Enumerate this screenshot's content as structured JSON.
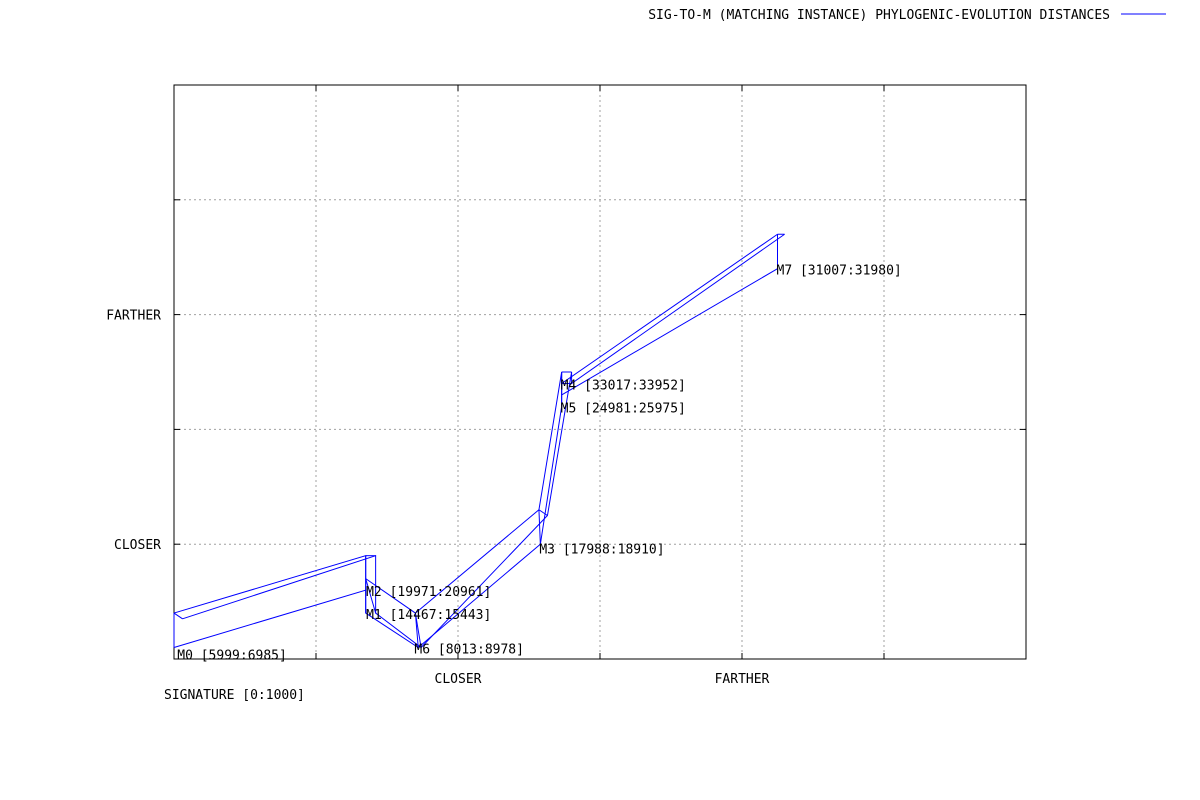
{
  "chart_data": {
    "type": "line",
    "legend": {
      "label": "SIG-TO-M (MATCHING INSTANCE) PHYLOGENIC-EVOLUTION DISTANCES",
      "placement": "top-right",
      "color": "#0000ff"
    },
    "xlim": [
      0,
      6
    ],
    "ylim": [
      0,
      5
    ],
    "x_ticks": [
      {
        "value": 1,
        "label": ""
      },
      {
        "value": 2,
        "label": "CLOSER"
      },
      {
        "value": 3,
        "label": ""
      },
      {
        "value": 4,
        "label": "FARTHER"
      },
      {
        "value": 5,
        "label": ""
      }
    ],
    "y_ticks": [
      {
        "value": 1,
        "label": "CLOSER"
      },
      {
        "value": 2,
        "label": ""
      },
      {
        "value": 3,
        "label": "FARTHER"
      },
      {
        "value": 4,
        "label": ""
      }
    ],
    "x_sublabel": "SIGNATURE [0:1000]",
    "grid": true,
    "series_color": "#0000ff",
    "points": [
      {
        "name": "M0",
        "label": "M0 [5999:6985]",
        "x": 0.03,
        "y": 0.05,
        "top": [
          0.0,
          0.4
        ],
        "bot": [
          0.0,
          0.1
        ],
        "rt": [
          0.06,
          0.35
        ]
      },
      {
        "name": "M2",
        "label": "M2 [19971:20961]",
        "x": 1.36,
        "y": 0.6,
        "top": [
          1.35,
          0.9
        ],
        "bot": [
          1.35,
          0.6
        ],
        "rt": [
          1.42,
          0.9
        ]
      },
      {
        "name": "M1",
        "label": "M1 [14467:15443]",
        "x": 1.36,
        "y": 0.4,
        "top": [
          1.35,
          0.7
        ],
        "bot": [
          1.35,
          0.4
        ],
        "rt": [
          1.42,
          0.4
        ]
      },
      {
        "name": "M6",
        "label": "M6 [8013:8978]",
        "x": 1.7,
        "y": 0.1,
        "top": [
          1.7,
          0.4
        ],
        "bot": [
          1.72,
          0.1
        ],
        "rt": [
          1.74,
          0.1
        ]
      },
      {
        "name": "M3",
        "label": "M3 [17988:18910]",
        "x": 2.58,
        "y": 0.97,
        "top": [
          2.57,
          1.3
        ],
        "bot": [
          2.58,
          1.0
        ],
        "rt": [
          2.63,
          1.25
        ]
      },
      {
        "name": "M5",
        "label": "M5 [24981:25975]",
        "x": 2.73,
        "y": 2.2,
        "top": [
          2.73,
          2.5
        ],
        "bot": [
          2.73,
          2.2
        ],
        "rt": [
          2.8,
          2.5
        ]
      },
      {
        "name": "M4",
        "label": "M4 [33017:33952]",
        "x": 2.73,
        "y": 2.4,
        "top": [
          2.73,
          2.4
        ],
        "bot": [
          2.73,
          2.3
        ],
        "rt": [
          2.8,
          2.4
        ]
      },
      {
        "name": "M7",
        "label": "M7 [31007:31980]",
        "x": 4.25,
        "y": 3.4,
        "top": [
          4.25,
          3.7
        ],
        "bot": [
          4.25,
          3.4
        ],
        "rt": [
          4.3,
          3.7
        ]
      }
    ]
  }
}
